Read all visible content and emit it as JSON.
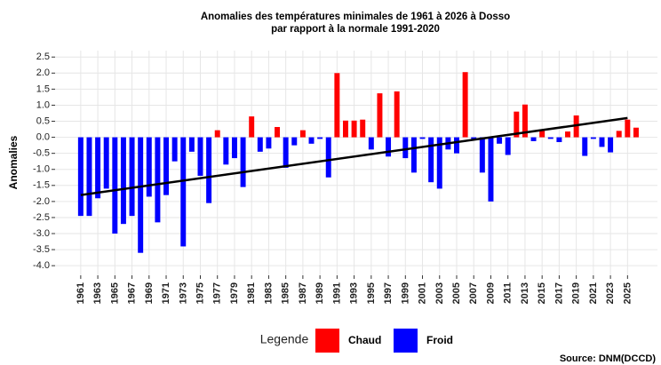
{
  "chart_data": {
    "type": "bar",
    "title": "Anomalies des températures minimales de 1961 à 2026 à Dosso",
    "subtitle": "par rapport à la normale 1991-2020",
    "y_label": "Anomalies",
    "legend_title": "Legende",
    "source": "Source: DNM(DCCD)",
    "x": [
      1961,
      1962,
      1963,
      1964,
      1965,
      1966,
      1967,
      1968,
      1969,
      1970,
      1971,
      1972,
      1973,
      1974,
      1975,
      1976,
      1977,
      1978,
      1979,
      1980,
      1981,
      1982,
      1983,
      1984,
      1985,
      1986,
      1987,
      1988,
      1989,
      1990,
      1991,
      1992,
      1993,
      1994,
      1995,
      1996,
      1997,
      1998,
      1999,
      2000,
      2001,
      2002,
      2003,
      2004,
      2005,
      2006,
      2007,
      2008,
      2009,
      2010,
      2011,
      2012,
      2013,
      2014,
      2015,
      2016,
      2017,
      2018,
      2019,
      2020,
      2021,
      2022,
      2023,
      2024,
      2025,
      2026
    ],
    "series": [
      {
        "name": "Chaud",
        "color": "#ff0000",
        "values": [
          null,
          null,
          null,
          null,
          null,
          null,
          null,
          null,
          null,
          null,
          null,
          null,
          null,
          null,
          null,
          null,
          0.22,
          null,
          null,
          null,
          0.65,
          null,
          null,
          0.32,
          null,
          null,
          0.22,
          null,
          null,
          null,
          2.0,
          0.52,
          0.52,
          0.55,
          null,
          1.37,
          null,
          1.43,
          null,
          null,
          null,
          null,
          null,
          null,
          null,
          2.03,
          null,
          null,
          null,
          null,
          null,
          0.8,
          1.02,
          null,
          0.2,
          null,
          null,
          0.18,
          0.68,
          null,
          null,
          null,
          null,
          0.2,
          0.55,
          0.3
        ]
      },
      {
        "name": "Froid",
        "color": "#0000ff",
        "values": [
          -2.45,
          -2.45,
          -1.9,
          -1.6,
          -3.0,
          -2.7,
          -2.45,
          -3.6,
          -1.85,
          -2.65,
          -1.8,
          -0.75,
          -3.4,
          -0.45,
          -1.2,
          -2.05,
          null,
          -0.85,
          -0.65,
          -1.55,
          null,
          -0.45,
          -0.35,
          null,
          -0.95,
          -0.25,
          null,
          -0.2,
          -0.05,
          -1.25,
          null,
          null,
          null,
          null,
          -0.38,
          null,
          -0.6,
          null,
          -0.65,
          -1.1,
          -0.05,
          -1.4,
          -1.6,
          -0.38,
          -0.5,
          null,
          -0.05,
          -1.1,
          -2.0,
          -0.2,
          -0.55,
          null,
          null,
          -0.12,
          null,
          -0.05,
          -0.15,
          null,
          null,
          -0.58,
          -0.05,
          -0.3,
          -0.47,
          null,
          null,
          null
        ]
      }
    ],
    "trend": {
      "x": [
        1961,
        2025
      ],
      "values": [
        -1.8,
        0.6
      ],
      "color": "#000000"
    },
    "xlim": [
      1958,
      2028.5
    ],
    "xticks": [
      1961,
      1963,
      1965,
      1967,
      1969,
      1971,
      1973,
      1975,
      1977,
      1979,
      1981,
      1983,
      1985,
      1987,
      1989,
      1991,
      1993,
      1995,
      1997,
      1999,
      2001,
      2003,
      2005,
      2007,
      2009,
      2011,
      2013,
      2015,
      2017,
      2019,
      2021,
      2023,
      2025
    ],
    "ylim": [
      -4.3,
      2.7
    ],
    "yticks": [
      {
        "value": 2.5,
        "label": "2.5"
      },
      {
        "value": 2,
        "label": "2.0"
      },
      {
        "value": 1.5,
        "label": "1.5"
      },
      {
        "value": 1,
        "label": "1.0"
      },
      {
        "value": 0.5,
        "label": "0.5"
      },
      {
        "value": 0,
        "label": "0.0"
      },
      {
        "value": -0.5,
        "label": "-0.5"
      },
      {
        "value": -1,
        "label": "-1.0"
      },
      {
        "value": -1.5,
        "label": "-1.5"
      },
      {
        "value": -2,
        "label": "-2.0"
      },
      {
        "value": -2.5,
        "label": "-2.5"
      },
      {
        "value": -3,
        "label": "-3.0"
      },
      {
        "value": -3.5,
        "label": "-3.5"
      },
      {
        "value": -4,
        "label": "-4.0"
      }
    ],
    "grid": true
  }
}
